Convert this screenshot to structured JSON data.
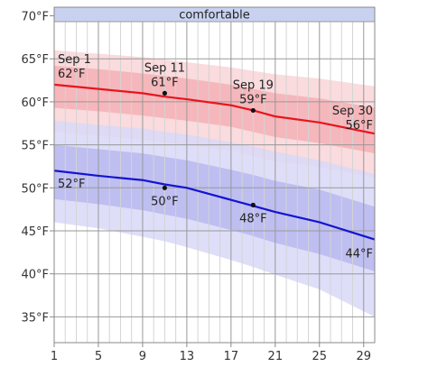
{
  "chart_data": {
    "type": "line",
    "band_label": "comfortable",
    "x_ticks": [
      1,
      5,
      9,
      13,
      17,
      21,
      25,
      29
    ],
    "y_ticks": [
      35,
      40,
      45,
      50,
      55,
      60,
      65,
      70
    ],
    "y_tick_labels": [
      "35°F",
      "40°F",
      "45°F",
      "50°F",
      "55°F",
      "60°F",
      "65°F",
      "70°F"
    ],
    "xlim": [
      1,
      30
    ],
    "ylim": [
      32,
      71
    ],
    "grid": true,
    "series": [
      {
        "color": "#e8141e",
        "x": [
          1,
          5,
          9,
          11,
          13,
          17,
          19,
          21,
          25,
          30
        ],
        "values": [
          62.0,
          61.5,
          61.0,
          60.6,
          60.3,
          59.6,
          59.0,
          58.3,
          57.6,
          56.3
        ],
        "band50_low": [
          59.3,
          58.9,
          58.4,
          58.1,
          57.8,
          57.1,
          56.5,
          55.9,
          55.2,
          54.0
        ],
        "band50_high": [
          64.2,
          63.8,
          63.3,
          63.0,
          62.7,
          62.0,
          61.5,
          61.0,
          60.4,
          59.3
        ],
        "band90_low": [
          56.5,
          56.1,
          55.6,
          55.3,
          55.0,
          54.3,
          53.7,
          53.1,
          52.4,
          51.2
        ],
        "band90_high": [
          66.0,
          65.6,
          65.2,
          64.9,
          64.6,
          64.0,
          63.6,
          63.2,
          62.7,
          61.8
        ]
      },
      {
        "color": "#1414d2",
        "x": [
          1,
          5,
          9,
          11,
          13,
          17,
          19,
          21,
          25,
          30
        ],
        "values": [
          52.0,
          51.4,
          50.9,
          50.4,
          50.0,
          48.6,
          47.9,
          47.2,
          46.0,
          44.0
        ],
        "band50_low": [
          48.7,
          48.1,
          47.4,
          46.9,
          46.4,
          45.1,
          44.4,
          43.6,
          42.3,
          40.3
        ],
        "band50_high": [
          55.0,
          54.5,
          54.0,
          53.6,
          53.2,
          52.1,
          51.5,
          50.8,
          49.8,
          47.8
        ],
        "band90_low": [
          46.0,
          45.3,
          44.3,
          43.8,
          43.1,
          41.6,
          40.8,
          39.9,
          38.2,
          35.0
        ],
        "band90_high": [
          57.8,
          57.3,
          56.9,
          56.5,
          56.2,
          55.3,
          54.8,
          54.2,
          53.2,
          51.6
        ]
      }
    ],
    "markers": [
      {
        "series": 0,
        "x": 1,
        "y": 62,
        "date": "Sep 1",
        "value_label": "62°F"
      },
      {
        "series": 0,
        "x": 11,
        "y": 61,
        "date": "Sep 11",
        "value_label": "61°F"
      },
      {
        "series": 0,
        "x": 19,
        "y": 59,
        "date": "Sep 19",
        "value_label": "59°F"
      },
      {
        "series": 0,
        "x": 30,
        "y": 56,
        "date": "Sep 30",
        "value_label": "56°F"
      },
      {
        "series": 1,
        "x": 1,
        "y": 52,
        "date": "",
        "value_label": "52°F"
      },
      {
        "series": 1,
        "x": 11,
        "y": 50,
        "date": "",
        "value_label": "50°F"
      },
      {
        "series": 1,
        "x": 19,
        "y": 48,
        "date": "",
        "value_label": "48°F"
      },
      {
        "series": 1,
        "x": 30,
        "y": 44,
        "date": "",
        "value_label": "44°F"
      }
    ]
  }
}
